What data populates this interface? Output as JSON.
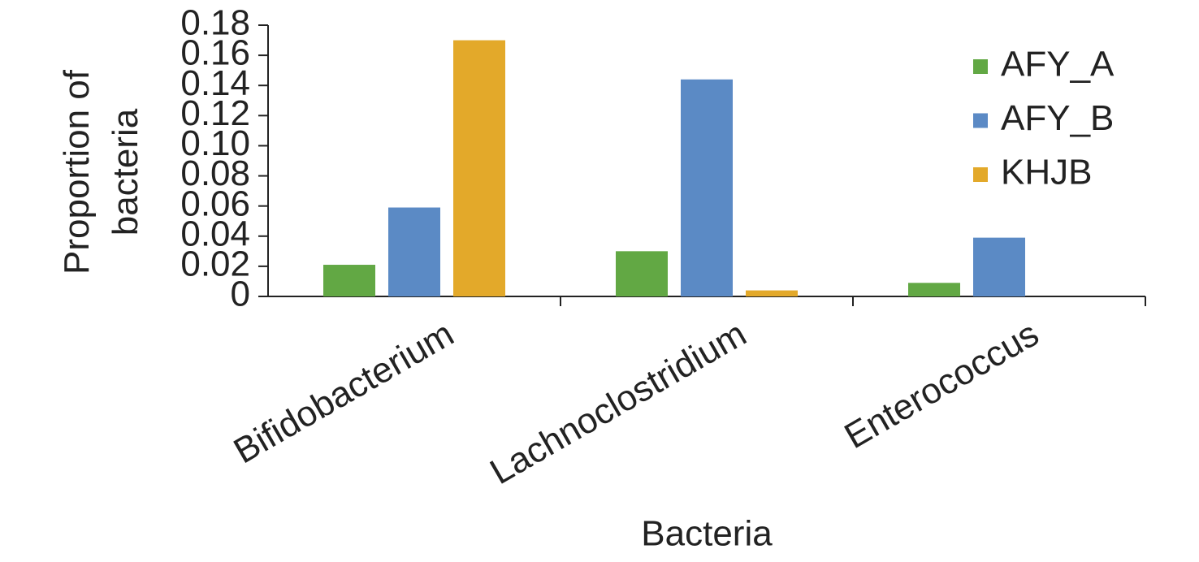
{
  "chart_data": {
    "type": "bar",
    "xlabel": "Bacteria",
    "ylabel": "Proportion of bacteria",
    "categories": [
      "Bifidobacterium",
      "Lachnoclostridium",
      "Enterococcus"
    ],
    "series": [
      {
        "name": "AFY_A",
        "color": "#62a844",
        "values": [
          0.021,
          0.03,
          0.009
        ]
      },
      {
        "name": "AFY_B",
        "color": "#5b8ac5",
        "values": [
          0.059,
          0.144,
          0.039
        ]
      },
      {
        "name": "KHJB",
        "color": "#e3a92a",
        "values": [
          0.17,
          0.004,
          0
        ]
      }
    ],
    "ylim": [
      0,
      0.18
    ],
    "yticks": [
      0,
      0.02,
      0.04,
      0.06,
      0.08,
      {
        "value": 0.1,
        "label": "0.10"
      },
      0.12,
      0.14,
      0.16,
      0.18
    ],
    "grid": false,
    "legend": "upper right"
  }
}
